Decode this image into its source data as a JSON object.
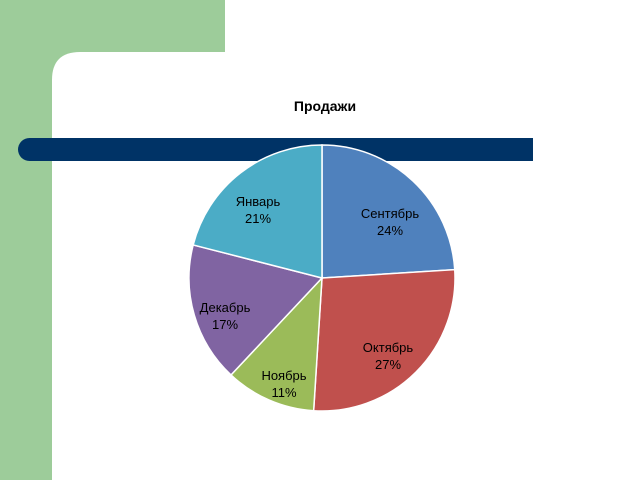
{
  "colors": {
    "green_band": "#9dcc9a",
    "navy_bar": "#003366",
    "slide_bg": "#ffffff"
  },
  "chart_data": {
    "type": "pie",
    "title": "Продажи",
    "start": "12 o'clock, clockwise",
    "slices": [
      {
        "label": "Сентябрь",
        "value": 24,
        "pct": "24%",
        "color": "#4f81bd"
      },
      {
        "label": "Октябрь",
        "value": 27,
        "pct": "27%",
        "color": "#c0504d"
      },
      {
        "label": "Ноябрь",
        "value": 11,
        "pct": "11%",
        "color": "#9bbb59"
      },
      {
        "label": "Декабрь",
        "value": 17,
        "pct": "17%",
        "color": "#8064a2"
      },
      {
        "label": "Январь",
        "value": 21,
        "pct": "21%",
        "color": "#4bacc6"
      }
    ]
  }
}
